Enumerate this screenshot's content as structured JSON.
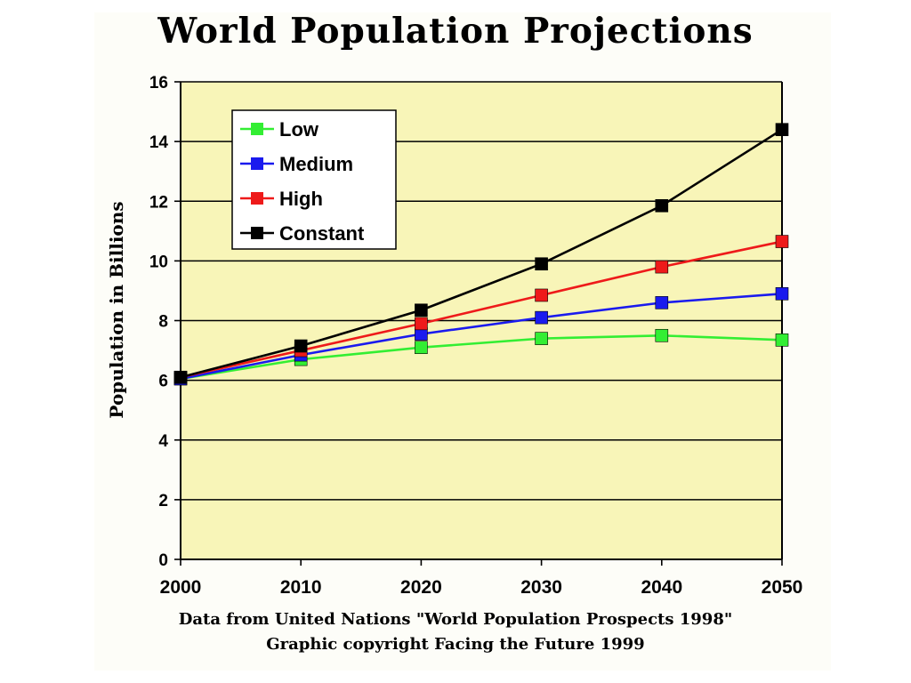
{
  "title": "World Population Projections",
  "source": {
    "line1": "Data from United Nations \"World Population Prospects 1998\"",
    "line2": "Graphic copyright Facing the Future 1999"
  },
  "colors": {
    "plot_background": "#f8f5b8",
    "grid": "#000000",
    "Low": "#33ee33",
    "Medium": "#1a1aee",
    "High": "#ee1a1a",
    "Constant": "#000000"
  },
  "chart_data": {
    "type": "line",
    "title": "World Population Projections",
    "xlabel": "",
    "ylabel": "Population in Billions",
    "x": [
      2000,
      2010,
      2020,
      2030,
      2040,
      2050
    ],
    "xticks": [
      "2000",
      "2010",
      "2020",
      "2030",
      "2040",
      "2050"
    ],
    "ylim": [
      0,
      16
    ],
    "yticks": [
      "0",
      "2",
      "4",
      "6",
      "8",
      "10",
      "12",
      "14",
      "16"
    ],
    "grid": true,
    "legend_position": "top-left",
    "series": [
      {
        "name": "Low",
        "values": [
          6.05,
          6.7,
          7.1,
          7.4,
          7.5,
          7.35
        ]
      },
      {
        "name": "Medium",
        "values": [
          6.05,
          6.85,
          7.55,
          8.1,
          8.6,
          8.9
        ]
      },
      {
        "name": "High",
        "values": [
          6.1,
          7.0,
          7.9,
          8.85,
          9.8,
          10.65
        ]
      },
      {
        "name": "Constant",
        "values": [
          6.1,
          7.15,
          8.35,
          9.9,
          11.85,
          14.4
        ]
      }
    ]
  }
}
